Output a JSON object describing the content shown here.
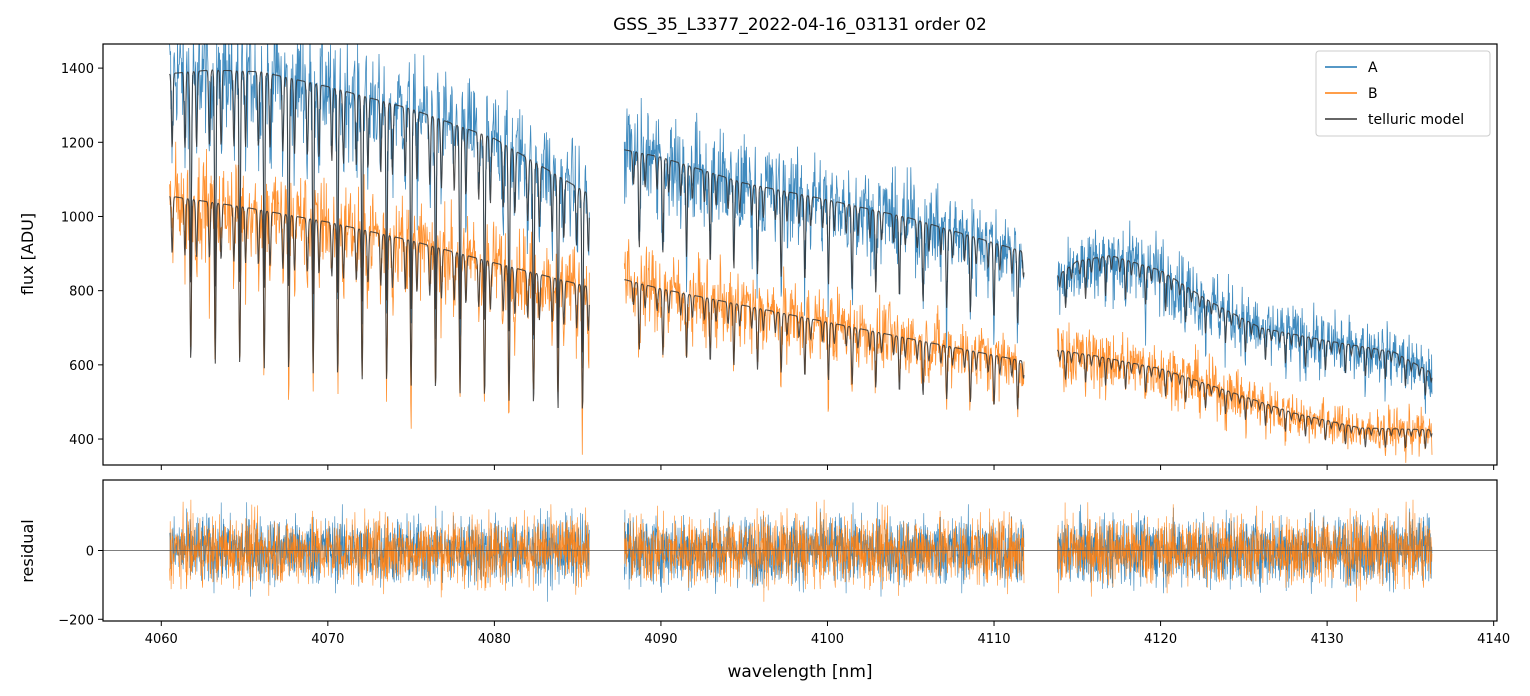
{
  "chart_data": [
    {
      "type": "line",
      "title": "GSS_35_L3377_2022-04-16_03131  order 02",
      "xlabel": "",
      "ylabel": "flux [ADU]",
      "xlim": [
        4056.5,
        4140.2
      ],
      "ylim": [
        330,
        1465
      ],
      "yticks": [
        400,
        600,
        800,
        1000,
        1200,
        1400
      ],
      "xticks": [
        4060,
        4070,
        4080,
        4090,
        4100,
        4110,
        4120,
        4130,
        4140
      ],
      "legend": {
        "placement": "top-right",
        "entries": [
          "A",
          "B",
          "telluric model"
        ]
      },
      "segments": [
        {
          "x_start": 4060.5,
          "x_end": 4085.7,
          "A_model": [
            [
              4060.5,
              1385
            ],
            [
              4063.0,
              1395
            ],
            [
              4066.0,
              1390
            ],
            [
              4070.0,
              1350
            ],
            [
              4075.0,
              1290
            ],
            [
              4080.0,
              1210
            ],
            [
              4085.7,
              1060
            ]
          ],
          "B_model": [
            [
              4060.5,
              1055
            ],
            [
              4065.0,
              1025
            ],
            [
              4070.0,
              985
            ],
            [
              4075.0,
              935
            ],
            [
              4080.0,
              875
            ],
            [
              4085.7,
              810
            ]
          ]
        },
        {
          "x_start": 4087.8,
          "x_end": 4111.8,
          "A_model": [
            [
              4087.8,
              1180
            ],
            [
              4090.0,
              1160
            ],
            [
              4095.0,
              1090
            ],
            [
              4100.0,
              1045
            ],
            [
              4105.0,
              995
            ],
            [
              4111.8,
              905
            ]
          ],
          "B_model": [
            [
              4087.8,
              830
            ],
            [
              4090.0,
              805
            ],
            [
              4095.0,
              760
            ],
            [
              4100.0,
              715
            ],
            [
              4105.0,
              670
            ],
            [
              4111.8,
              610
            ]
          ]
        },
        {
          "x_start": 4113.8,
          "x_end": 4136.3,
          "A_model": [
            [
              4113.8,
              840
            ],
            [
              4115.0,
              880
            ],
            [
              4117.0,
              895
            ],
            [
              4120.0,
              855
            ],
            [
              4123.0,
              770
            ],
            [
              4126.0,
              700
            ],
            [
              4130.0,
              665
            ],
            [
              4134.0,
              635
            ],
            [
              4136.3,
              578
            ]
          ],
          "B_model": [
            [
              4113.8,
              640
            ],
            [
              4116.0,
              625
            ],
            [
              4120.0,
              590
            ],
            [
              4124.0,
              530
            ],
            [
              4128.0,
              470
            ],
            [
              4132.0,
              430
            ],
            [
              4136.3,
              425
            ]
          ]
        }
      ],
      "series": [
        {
          "name": "A",
          "color": "#1f77b4"
        },
        {
          "name": "B",
          "color": "#ff7f0e"
        },
        {
          "name": "telluric model",
          "color": "#333333"
        }
      ]
    },
    {
      "type": "line",
      "title": "",
      "xlabel": "wavelength [nm]",
      "ylabel": "residual",
      "xlim": [
        4056.5,
        4140.2
      ],
      "ylim": [
        -205,
        205
      ],
      "yticks": [
        -200,
        0
      ],
      "xticks": [
        4060,
        4070,
        4080,
        4090,
        4100,
        4110,
        4120,
        4130,
        4140
      ],
      "baseline": 0,
      "residual_scatter": 70,
      "series": [
        {
          "name": "A",
          "color": "#1f77b4"
        },
        {
          "name": "B",
          "color": "#ff7f0e"
        }
      ]
    }
  ]
}
